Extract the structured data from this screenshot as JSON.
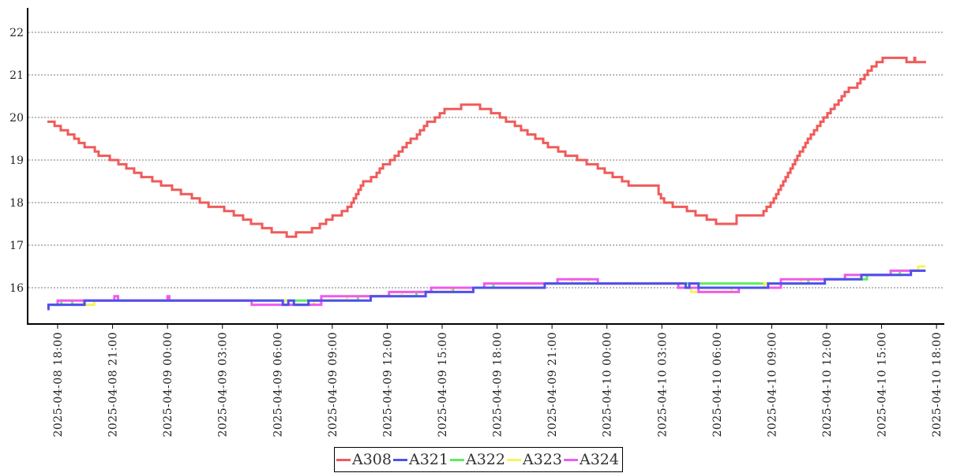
{
  "chart_data": {
    "type": "line",
    "step": true,
    "title": "",
    "xlabel": "",
    "ylabel": "",
    "x_unit": "hours since 2025-04-08 18:00",
    "xlim": [
      -1.7,
      48.5
    ],
    "ylim": [
      15.15,
      22.6
    ],
    "grid": "horizontal dotted",
    "legend_placement": "bottom-center",
    "yticks": [
      "16",
      "17",
      "18",
      "19",
      "20",
      "21",
      "22"
    ],
    "xticks": [
      {
        "t": 0,
        "label": "2025-04-08  18:00"
      },
      {
        "t": 3,
        "label": "2025-04-08  21:00"
      },
      {
        "t": 6,
        "label": "2025-04-09  00:00"
      },
      {
        "t": 9,
        "label": "2025-04-09  03:00"
      },
      {
        "t": 12,
        "label": "2025-04-09  06:00"
      },
      {
        "t": 15,
        "label": "2025-04-09  09:00"
      },
      {
        "t": 18,
        "label": "2025-04-09  12:00"
      },
      {
        "t": 21,
        "label": "2025-04-09  15:00"
      },
      {
        "t": 24,
        "label": "2025-04-09  18:00"
      },
      {
        "t": 27,
        "label": "2025-04-09  21:00"
      },
      {
        "t": 30,
        "label": "2025-04-10  00:00"
      },
      {
        "t": 33,
        "label": "2025-04-10  03:00"
      },
      {
        "t": 36,
        "label": "2025-04-10  06:00"
      },
      {
        "t": 39,
        "label": "2025-04-10  09:00"
      },
      {
        "t": 42,
        "label": "2025-04-10  12:00"
      },
      {
        "t": 45,
        "label": "2025-04-10  15:00"
      },
      {
        "t": 48,
        "label": "2025-04-10  18:00"
      }
    ],
    "series": [
      {
        "name": "A308",
        "color": "#f05a5a",
        "points": [
          [
            -0.56,
            19.9
          ],
          [
            -0.17,
            19.8
          ],
          [
            0.17,
            19.7
          ],
          [
            0.56,
            19.6
          ],
          [
            0.91,
            19.5
          ],
          [
            1.16,
            19.4
          ],
          [
            1.47,
            19.3
          ],
          [
            2.03,
            19.2
          ],
          [
            2.24,
            19.1
          ],
          [
            2.85,
            19.0
          ],
          [
            3.32,
            18.9
          ],
          [
            3.75,
            18.8
          ],
          [
            4.18,
            18.7
          ],
          [
            4.57,
            18.6
          ],
          [
            5.17,
            18.5
          ],
          [
            5.65,
            18.4
          ],
          [
            6.25,
            18.3
          ],
          [
            6.73,
            18.2
          ],
          [
            7.33,
            18.1
          ],
          [
            7.76,
            18.0
          ],
          [
            8.24,
            17.9
          ],
          [
            9.1,
            17.8
          ],
          [
            9.62,
            17.7
          ],
          [
            10.13,
            17.6
          ],
          [
            10.56,
            17.5
          ],
          [
            11.17,
            17.4
          ],
          [
            11.69,
            17.3
          ],
          [
            12.51,
            17.2
          ],
          [
            13.02,
            17.3
          ],
          [
            13.89,
            17.4
          ],
          [
            14.32,
            17.5
          ],
          [
            14.66,
            17.6
          ],
          [
            15.01,
            17.7
          ],
          [
            15.52,
            17.8
          ],
          [
            15.83,
            17.9
          ],
          [
            16.04,
            18.0
          ],
          [
            16.17,
            18.1
          ],
          [
            16.3,
            18.2
          ],
          [
            16.43,
            18.3
          ],
          [
            16.56,
            18.4
          ],
          [
            16.69,
            18.5
          ],
          [
            17.12,
            18.6
          ],
          [
            17.42,
            18.7
          ],
          [
            17.59,
            18.8
          ],
          [
            17.77,
            18.9
          ],
          [
            18.15,
            19.0
          ],
          [
            18.41,
            19.1
          ],
          [
            18.63,
            19.2
          ],
          [
            18.84,
            19.3
          ],
          [
            19.06,
            19.4
          ],
          [
            19.28,
            19.5
          ],
          [
            19.62,
            19.6
          ],
          [
            19.79,
            19.7
          ],
          [
            20.01,
            19.8
          ],
          [
            20.18,
            19.9
          ],
          [
            20.61,
            20.0
          ],
          [
            20.87,
            20.1
          ],
          [
            21.13,
            20.2
          ],
          [
            22.04,
            20.3
          ],
          [
            23.07,
            20.2
          ],
          [
            23.67,
            20.1
          ],
          [
            24.15,
            20.0
          ],
          [
            24.49,
            19.9
          ],
          [
            24.97,
            19.8
          ],
          [
            25.31,
            19.7
          ],
          [
            25.66,
            19.6
          ],
          [
            26.09,
            19.5
          ],
          [
            26.52,
            19.4
          ],
          [
            26.78,
            19.3
          ],
          [
            27.34,
            19.2
          ],
          [
            27.73,
            19.1
          ],
          [
            28.37,
            19.0
          ],
          [
            28.89,
            18.9
          ],
          [
            29.5,
            18.8
          ],
          [
            29.88,
            18.7
          ],
          [
            30.31,
            18.6
          ],
          [
            30.83,
            18.5
          ],
          [
            31.18,
            18.4
          ],
          [
            32.82,
            18.2
          ],
          [
            32.95,
            18.1
          ],
          [
            33.12,
            18.0
          ],
          [
            33.59,
            17.9
          ],
          [
            34.37,
            17.8
          ],
          [
            34.84,
            17.7
          ],
          [
            35.45,
            17.6
          ],
          [
            35.96,
            17.5
          ],
          [
            37.08,
            17.7
          ],
          [
            38.55,
            17.8
          ],
          [
            38.72,
            17.9
          ],
          [
            38.94,
            18.0
          ],
          [
            39.11,
            18.1
          ],
          [
            39.24,
            18.2
          ],
          [
            39.37,
            18.3
          ],
          [
            39.5,
            18.4
          ],
          [
            39.63,
            18.5
          ],
          [
            39.76,
            18.6
          ],
          [
            39.89,
            18.7
          ],
          [
            40.02,
            18.8
          ],
          [
            40.15,
            18.9
          ],
          [
            40.28,
            19.0
          ],
          [
            40.4,
            19.1
          ],
          [
            40.53,
            19.2
          ],
          [
            40.71,
            19.3
          ],
          [
            40.84,
            19.4
          ],
          [
            40.97,
            19.5
          ],
          [
            41.14,
            19.6
          ],
          [
            41.31,
            19.7
          ],
          [
            41.48,
            19.8
          ],
          [
            41.66,
            19.9
          ],
          [
            41.83,
            20.0
          ],
          [
            42.04,
            20.1
          ],
          [
            42.22,
            20.2
          ],
          [
            42.43,
            20.3
          ],
          [
            42.65,
            20.4
          ],
          [
            42.82,
            20.5
          ],
          [
            42.99,
            20.6
          ],
          [
            43.21,
            20.7
          ],
          [
            43.68,
            20.8
          ],
          [
            43.85,
            20.9
          ],
          [
            44.07,
            21.0
          ],
          [
            44.24,
            21.1
          ],
          [
            44.46,
            21.2
          ],
          [
            44.72,
            21.3
          ],
          [
            45.06,
            21.4
          ],
          [
            46.36,
            21.3
          ],
          [
            46.79,
            21.4
          ],
          [
            46.83,
            21.3
          ],
          [
            47.43,
            21.3
          ]
        ]
      },
      {
        "name": "A322",
        "color": "#5aef5a",
        "points": [
          [
            -0.5,
            15.6
          ],
          [
            0.2,
            15.7
          ],
          [
            0.8,
            15.6
          ],
          [
            1.4,
            15.7
          ],
          [
            16.4,
            15.8
          ],
          [
            19.6,
            15.9
          ],
          [
            21.6,
            16.0
          ],
          [
            23.8,
            16.1
          ],
          [
            41.0,
            16.2
          ],
          [
            44.2,
            16.3
          ],
          [
            46.0,
            16.4
          ],
          [
            47.4,
            16.4
          ]
        ]
      },
      {
        "name": "A323",
        "color": "#f5f55a",
        "points": [
          [
            0,
            15.7
          ],
          [
            1.4,
            15.6
          ],
          [
            2.0,
            15.7
          ],
          [
            12.6,
            15.6
          ],
          [
            14.0,
            15.7
          ],
          [
            15.8,
            15.8
          ],
          [
            18.8,
            15.9
          ],
          [
            21.5,
            16.0
          ],
          [
            23.3,
            16.1
          ],
          [
            28.1,
            16.2
          ],
          [
            29.0,
            16.1
          ],
          [
            33.9,
            16.0
          ],
          [
            34.6,
            15.9
          ],
          [
            36.8,
            16.0
          ],
          [
            38.6,
            16.1
          ],
          [
            40.6,
            16.2
          ],
          [
            43.0,
            16.3
          ],
          [
            45.5,
            16.4
          ],
          [
            47.0,
            16.5
          ],
          [
            47.4,
            16.5
          ]
        ]
      },
      {
        "name": "A324",
        "color": "#f05af0",
        "points": [
          [
            -0.2,
            15.6
          ],
          [
            0,
            15.7
          ],
          [
            3.1,
            15.8
          ],
          [
            3.3,
            15.7
          ],
          [
            6.0,
            15.8
          ],
          [
            6.1,
            15.7
          ],
          [
            10.6,
            15.6
          ],
          [
            14.4,
            15.8
          ],
          [
            18.1,
            15.9
          ],
          [
            20.4,
            16.0
          ],
          [
            23.3,
            16.1
          ],
          [
            27.3,
            16.2
          ],
          [
            29.5,
            16.1
          ],
          [
            33.9,
            16.0
          ],
          [
            35.0,
            15.9
          ],
          [
            37.2,
            16.0
          ],
          [
            39.5,
            16.2
          ],
          [
            43.0,
            16.3
          ],
          [
            45.5,
            16.4
          ],
          [
            47.4,
            16.4
          ]
        ]
      },
      {
        "name": "A321",
        "color": "#5050ee",
        "points": [
          [
            -0.56,
            15.5
          ],
          [
            -0.5,
            15.6
          ],
          [
            1.47,
            15.7
          ],
          [
            12.3,
            15.6
          ],
          [
            12.6,
            15.7
          ],
          [
            12.9,
            15.6
          ],
          [
            13.7,
            15.7
          ],
          [
            17.1,
            15.8
          ],
          [
            20.1,
            15.9
          ],
          [
            22.7,
            16.0
          ],
          [
            26.6,
            16.1
          ],
          [
            34.3,
            16.0
          ],
          [
            34.5,
            16.1
          ],
          [
            35.0,
            16.0
          ],
          [
            38.8,
            16.1
          ],
          [
            41.9,
            16.2
          ],
          [
            43.9,
            16.3
          ],
          [
            46.6,
            16.4
          ],
          [
            47.4,
            16.4
          ]
        ]
      }
    ],
    "legend": [
      "A308",
      "A321",
      "A322",
      "A323",
      "A324"
    ]
  }
}
